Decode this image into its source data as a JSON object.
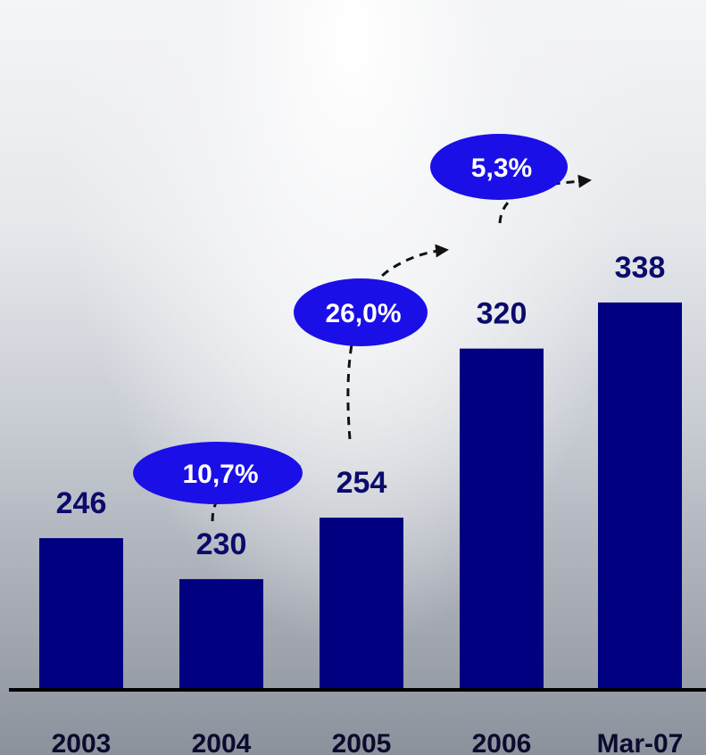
{
  "chart_data": {
    "type": "bar",
    "categories": [
      "2003",
      "2004",
      "2005",
      "2006",
      "Mar-07"
    ],
    "values": [
      246,
      230,
      254,
      320,
      338
    ],
    "data_labels": [
      "246",
      "230",
      "254",
      "320",
      "338"
    ],
    "title": "",
    "xlabel": "",
    "ylabel": "",
    "ylim": [
      0,
      400
    ],
    "grid": false,
    "legend": "none",
    "bar_color": "#000080",
    "growth_annotations": [
      {
        "from": "2004",
        "to": "2005",
        "label": "10,7%"
      },
      {
        "from": "2005",
        "to": "2006",
        "label": "26,0%"
      },
      {
        "from": "2006",
        "to": "Mar-07",
        "label": "5,3%"
      }
    ],
    "annotation_color": "#1a0fe6"
  }
}
